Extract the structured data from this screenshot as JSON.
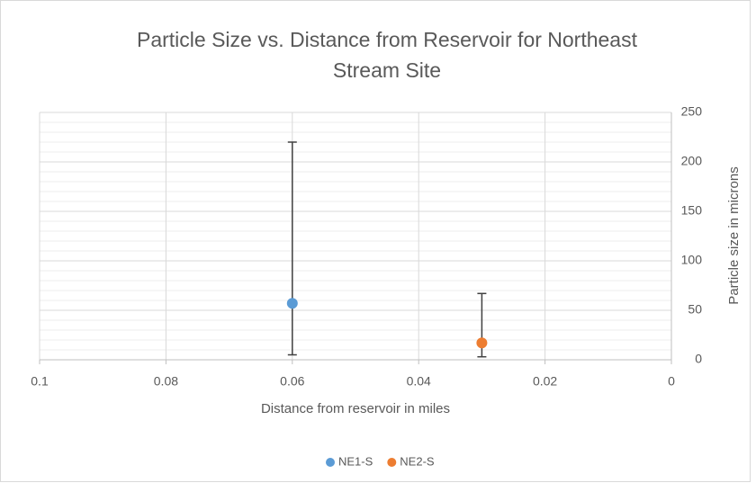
{
  "chart_data": {
    "type": "scatter",
    "title": "Particle Size vs. Distance from Reservoir for Northeast Stream Site",
    "x_label": "Distance from reservoir in miles",
    "y_label": "Particle size in microns",
    "series": [
      {
        "name": "NE1-S",
        "color": "#5b9bd5",
        "x": [
          0.06
        ],
        "values": [
          57
        ],
        "error_minus": [
          52
        ],
        "error_plus": [
          163
        ]
      },
      {
        "name": "NE2-S",
        "color": "#ed7d31",
        "x": [
          0.03
        ],
        "values": [
          17
        ],
        "error_minus": [
          14
        ],
        "error_plus": [
          50
        ]
      }
    ],
    "xlim": [
      0,
      0.1
    ],
    "x_reversed": true,
    "xticks": [
      0.1,
      0.08,
      0.06,
      0.04,
      0.02,
      0
    ],
    "ylim": [
      0,
      250
    ],
    "yticks": [
      0,
      50,
      100,
      150,
      200,
      250
    ],
    "yminorticks": [
      10,
      20,
      30,
      40,
      60,
      70,
      80,
      90,
      110,
      120,
      130,
      140,
      160,
      170,
      180,
      190,
      210,
      220,
      230,
      240
    ],
    "y_axis_position": "right",
    "grid": true,
    "legend": "bottom"
  }
}
